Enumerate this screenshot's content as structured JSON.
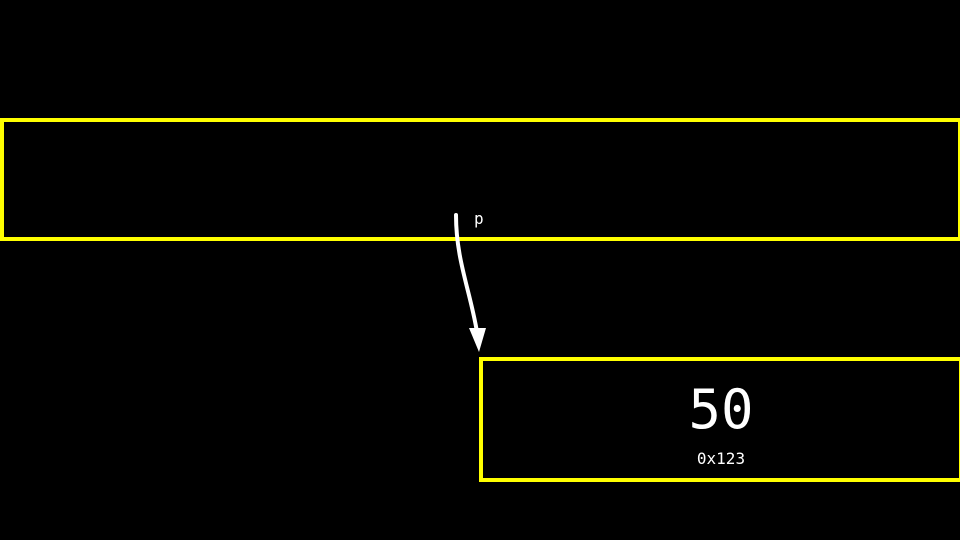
{
  "pointer": {
    "label": "p"
  },
  "memory": {
    "value": "50",
    "address": "0x123"
  },
  "colors": {
    "background": "#000000",
    "box_border": "#ffff00",
    "text": "#ffffff",
    "arrow": "#ffffff"
  }
}
